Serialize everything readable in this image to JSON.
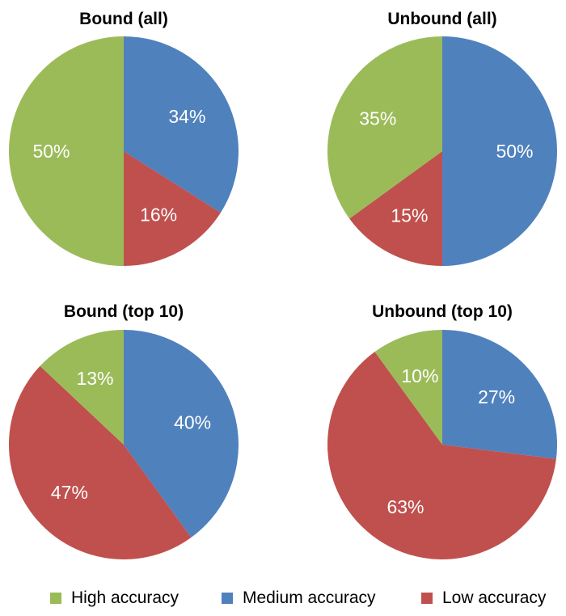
{
  "legend": {
    "high": "High accuracy",
    "medium": "Medium accuracy",
    "low": "Low accuracy"
  },
  "colors": {
    "high": "#9bbb59",
    "medium": "#4f81bd",
    "low": "#c0504d"
  },
  "chart_data": [
    {
      "type": "pie",
      "title": "Bound (all)",
      "slices": [
        {
          "category": "Medium accuracy",
          "key": "medium",
          "value": 34,
          "label": "34%"
        },
        {
          "category": "Low accuracy",
          "key": "low",
          "value": 16,
          "label": "16%"
        },
        {
          "category": "High accuracy",
          "key": "high",
          "value": 50,
          "label": "50%"
        }
      ]
    },
    {
      "type": "pie",
      "title": "Unbound (all)",
      "slices": [
        {
          "category": "Medium accuracy",
          "key": "medium",
          "value": 50,
          "label": "50%"
        },
        {
          "category": "Low accuracy",
          "key": "low",
          "value": 15,
          "label": "15%"
        },
        {
          "category": "High accuracy",
          "key": "high",
          "value": 35,
          "label": "35%"
        }
      ]
    },
    {
      "type": "pie",
      "title": "Bound (top 10)",
      "slices": [
        {
          "category": "Medium accuracy",
          "key": "medium",
          "value": 40,
          "label": "40%"
        },
        {
          "category": "Low accuracy",
          "key": "low",
          "value": 47,
          "label": "47%"
        },
        {
          "category": "High accuracy",
          "key": "high",
          "value": 13,
          "label": "13%"
        }
      ]
    },
    {
      "type": "pie",
      "title": "Unbound (top 10)",
      "slices": [
        {
          "category": "Medium accuracy",
          "key": "medium",
          "value": 27,
          "label": "27%"
        },
        {
          "category": "Low accuracy",
          "key": "low",
          "value": 63,
          "label": "63%"
        },
        {
          "category": "High accuracy",
          "key": "high",
          "value": 10,
          "label": "10%"
        }
      ]
    }
  ]
}
